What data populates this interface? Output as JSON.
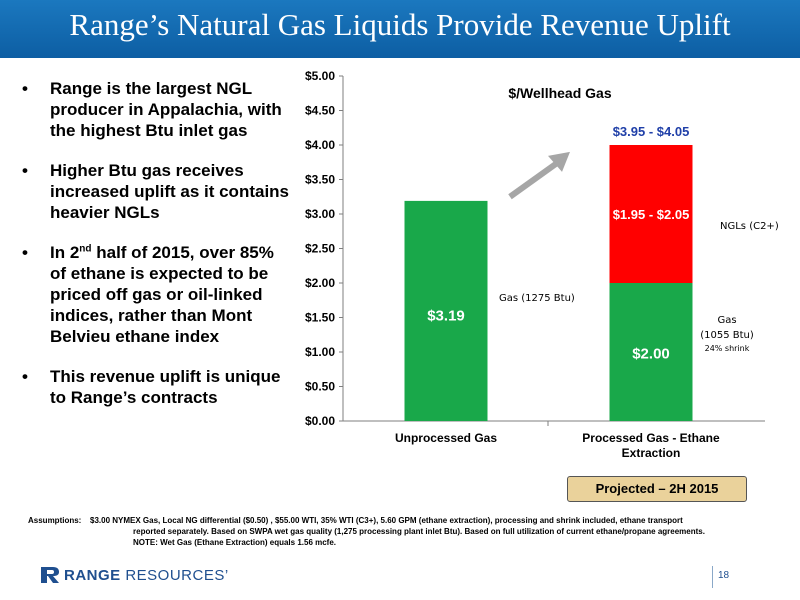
{
  "title": "Range’s Natural Gas Liquids Provide Revenue Uplift",
  "bullets": [
    {
      "text": "Range is the largest NGL producer in Appalachia, with the highest Btu inlet gas"
    },
    {
      "text": "Higher Btu gas receives increased uplift as it contains heavier NGLs"
    },
    {
      "pre": "In 2",
      "sup": "nd",
      "post": " half of 2015, over 85% of ethane is expected to be priced off gas or oil-linked indices, rather than Mont Belvieu ethane index"
    },
    {
      "text": "This revenue uplift is unique to Range’s contracts"
    }
  ],
  "chart_data": {
    "type": "bar",
    "stacked": true,
    "title": "$/Wellhead Gas",
    "categories": [
      "Unprocessed Gas",
      "Processed Gas - Ethane Extraction"
    ],
    "category_lines": [
      [
        "Unprocessed Gas"
      ],
      [
        "Processed Gas - Ethane",
        "Extraction"
      ]
    ],
    "series": [
      {
        "name": "Gas",
        "values": [
          3.19,
          2.0
        ],
        "labels": [
          "$3.19",
          "$2.00"
        ],
        "color": "#19a84a"
      },
      {
        "name": "NGLs (C2+)",
        "values": [
          0,
          2.0
        ],
        "labels": [
          "",
          "$1.95 - $2.05"
        ],
        "color": "#ff0000"
      }
    ],
    "total_label": "$3.95 - $4.05",
    "ylim": [
      0,
      5
    ],
    "yticks": [
      "$0.00",
      "$0.50",
      "$1.00",
      "$1.50",
      "$2.00",
      "$2.50",
      "$3.00",
      "$3.50",
      "$4.00",
      "$4.50",
      "$5.00"
    ],
    "grid": false,
    "annotations": {
      "gas_unprocessed": "Gas (1275 Btu)",
      "ngls": "NGLs (C2+)",
      "gas_processed_1": "Gas",
      "gas_processed_2": "(1055 Btu)",
      "shrink": "24% shrink"
    }
  },
  "projected_label": "Projected – 2H 2015",
  "assumptions": {
    "label": "Assumptions:",
    "line1": "$3.00 NYMEX Gas, Local NG differential ($0.50) , $55.00 WTI, 35% WTI (C3+), 5.60 GPM (ethane extraction), processing and shrink included, ethane transport",
    "line2": "reported separately.  Based on SWPA wet gas quality (1,275 processing plant inlet Btu).  Based on full utilization of current ethane/propane agreements.",
    "line3": "NOTE: Wet Gas (Ethane Extraction) equals 1.56 mcfe."
  },
  "logo": {
    "bold": "RANGE",
    "thin": " RESOURCES",
    "mark": "’"
  },
  "page_number": "18",
  "colors": {
    "title_bar": "#1b78bf",
    "gas_bar": "#19a84a",
    "ngl_bar": "#ff0000",
    "total_label": "#1f3fa8",
    "arrow": "#a6a6a6"
  }
}
